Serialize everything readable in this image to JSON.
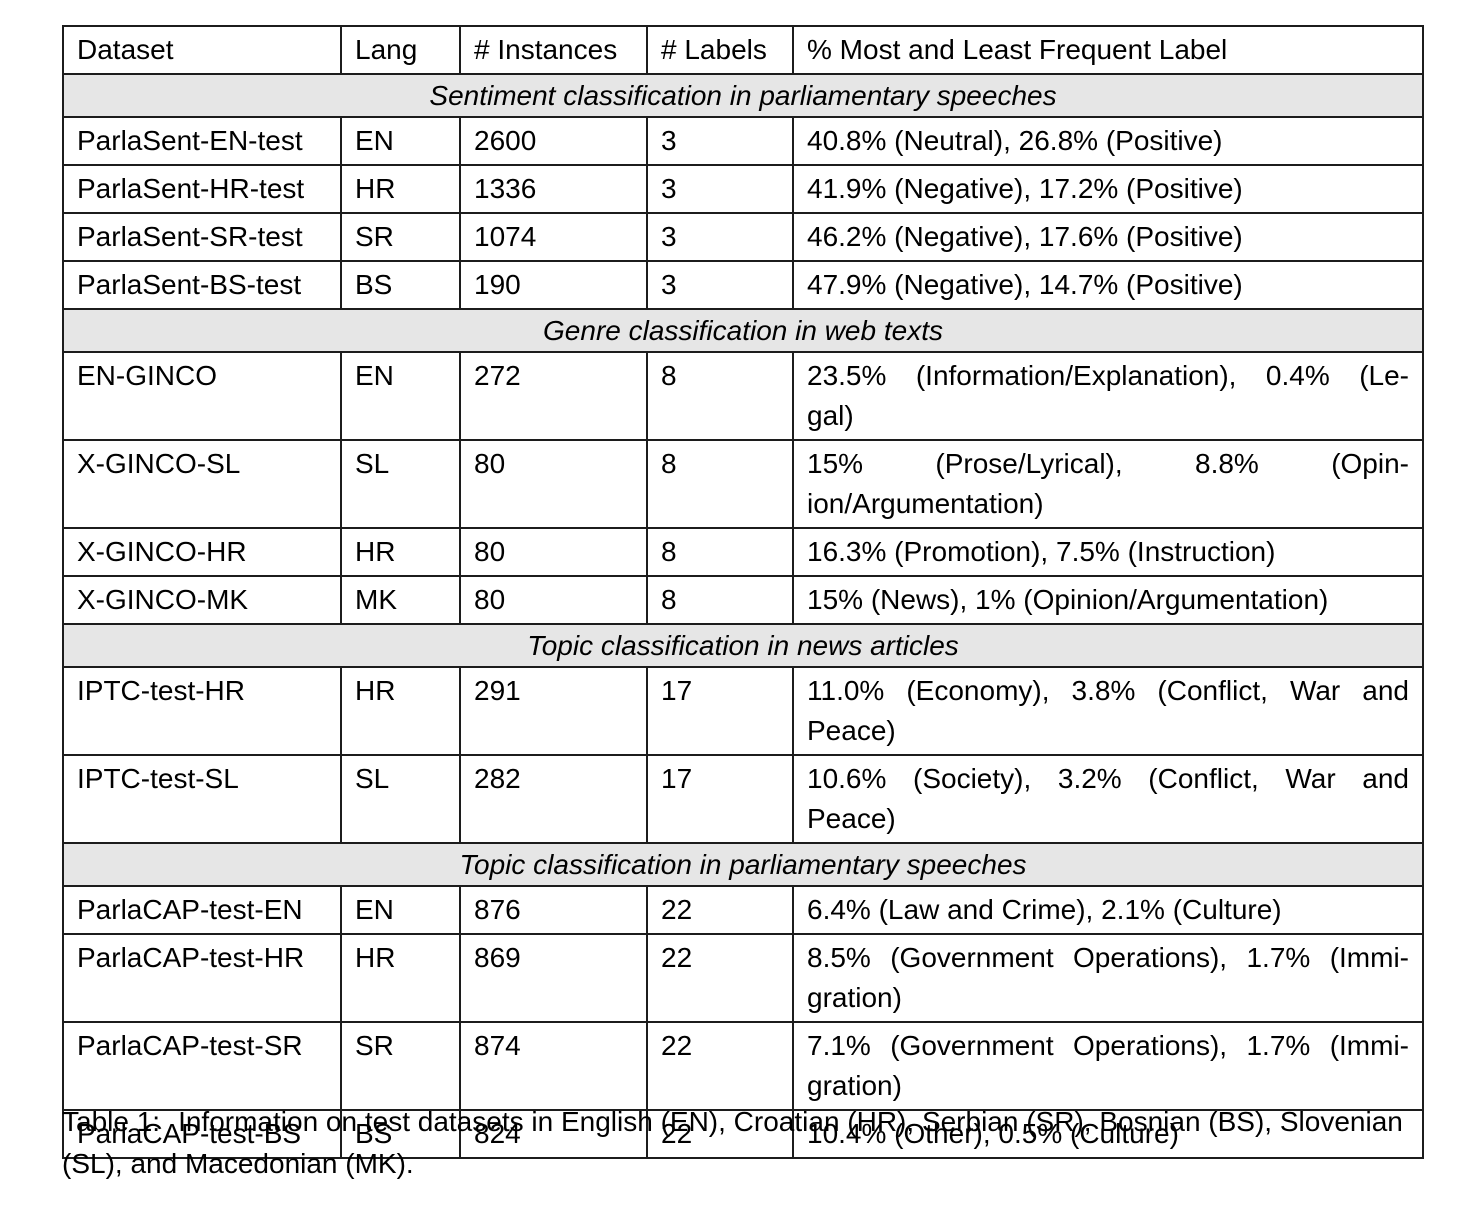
{
  "colors": {
    "section_band": "#e6e6e6",
    "border": "#1c1c1c",
    "text": "#000000",
    "background": "#ffffff"
  },
  "table": {
    "columns": [
      "Dataset",
      "Lang",
      "# Instances",
      "# Labels",
      "% Most and Least Frequent Label"
    ],
    "sections": [
      {
        "title": "Sentiment classification in parliamentary speeches",
        "rows": [
          {
            "dataset": "ParlaSent-EN-test",
            "lang": "EN",
            "instances": "2600",
            "labels": "3",
            "freq_lines": [
              "40.8% (Neutral), 26.8% (Positive)"
            ]
          },
          {
            "dataset": "ParlaSent-HR-test",
            "lang": "HR",
            "instances": "1336",
            "labels": "3",
            "freq_lines": [
              "41.9% (Negative), 17.2% (Positive)"
            ]
          },
          {
            "dataset": "ParlaSent-SR-test",
            "lang": "SR",
            "instances": "1074",
            "labels": "3",
            "freq_lines": [
              "46.2% (Negative), 17.6% (Positive)"
            ]
          },
          {
            "dataset": "ParlaSent-BS-test",
            "lang": "BS",
            "instances": "190",
            "labels": "3",
            "freq_lines": [
              "47.9% (Negative), 14.7% (Positive)"
            ]
          }
        ]
      },
      {
        "title": "Genre classification in web texts",
        "rows": [
          {
            "dataset": "EN-GINCO",
            "lang": "EN",
            "instances": "272",
            "labels": "8",
            "freq_lines": [
              "23.5% (Information/Explanation), 0.4% (Le-",
              "gal)"
            ]
          },
          {
            "dataset": "X-GINCO-SL",
            "lang": "SL",
            "instances": "80",
            "labels": "8",
            "freq_lines": [
              "15% (Prose/Lyrical), 8.8% (Opin-",
              "ion/Argumentation)"
            ]
          },
          {
            "dataset": "X-GINCO-HR",
            "lang": "HR",
            "instances": "80",
            "labels": "8",
            "freq_lines": [
              "16.3% (Promotion), 7.5% (Instruction)"
            ]
          },
          {
            "dataset": "X-GINCO-MK",
            "lang": "MK",
            "instances": "80",
            "labels": "8",
            "freq_lines": [
              "15% (News), 1% (Opinion/Argumentation)"
            ]
          }
        ]
      },
      {
        "title": "Topic classification in news articles",
        "rows": [
          {
            "dataset": "IPTC-test-HR",
            "lang": "HR",
            "instances": "291",
            "labels": "17",
            "freq_lines": [
              "11.0% (Economy), 3.8% (Conflict, War and",
              "Peace)"
            ]
          },
          {
            "dataset": "IPTC-test-SL",
            "lang": "SL",
            "instances": "282",
            "labels": "17",
            "freq_lines": [
              "10.6% (Society), 3.2% (Conflict, War and",
              "Peace)"
            ]
          }
        ]
      },
      {
        "title": "Topic classification in parliamentary speeches",
        "rows": [
          {
            "dataset": "ParlaCAP-test-EN",
            "lang": "EN",
            "instances": "876",
            "labels": "22",
            "freq_lines": [
              "6.4% (Law and Crime), 2.1% (Culture)"
            ]
          },
          {
            "dataset": "ParlaCAP-test-HR",
            "lang": "HR",
            "instances": "869",
            "labels": "22",
            "freq_lines": [
              "8.5% (Government Operations), 1.7% (Immi-",
              "gration)"
            ]
          },
          {
            "dataset": "ParlaCAP-test-SR",
            "lang": "SR",
            "instances": "874",
            "labels": "22",
            "freq_lines": [
              "7.1% (Government Operations), 1.7% (Immi-",
              "gration)"
            ]
          },
          {
            "dataset": "ParlaCAP-test-BS",
            "lang": "BS",
            "instances": "824",
            "labels": "22",
            "freq_lines": [
              "10.4% (Other), 0.5% (Culture)"
            ]
          }
        ]
      }
    ]
  },
  "caption": {
    "label": "Table 1:",
    "text": "Information on test datasets in English (EN), Croatian (HR), Serbian (SR), Bosnian (BS), Slovenian (SL), and Macedonian (MK)."
  }
}
